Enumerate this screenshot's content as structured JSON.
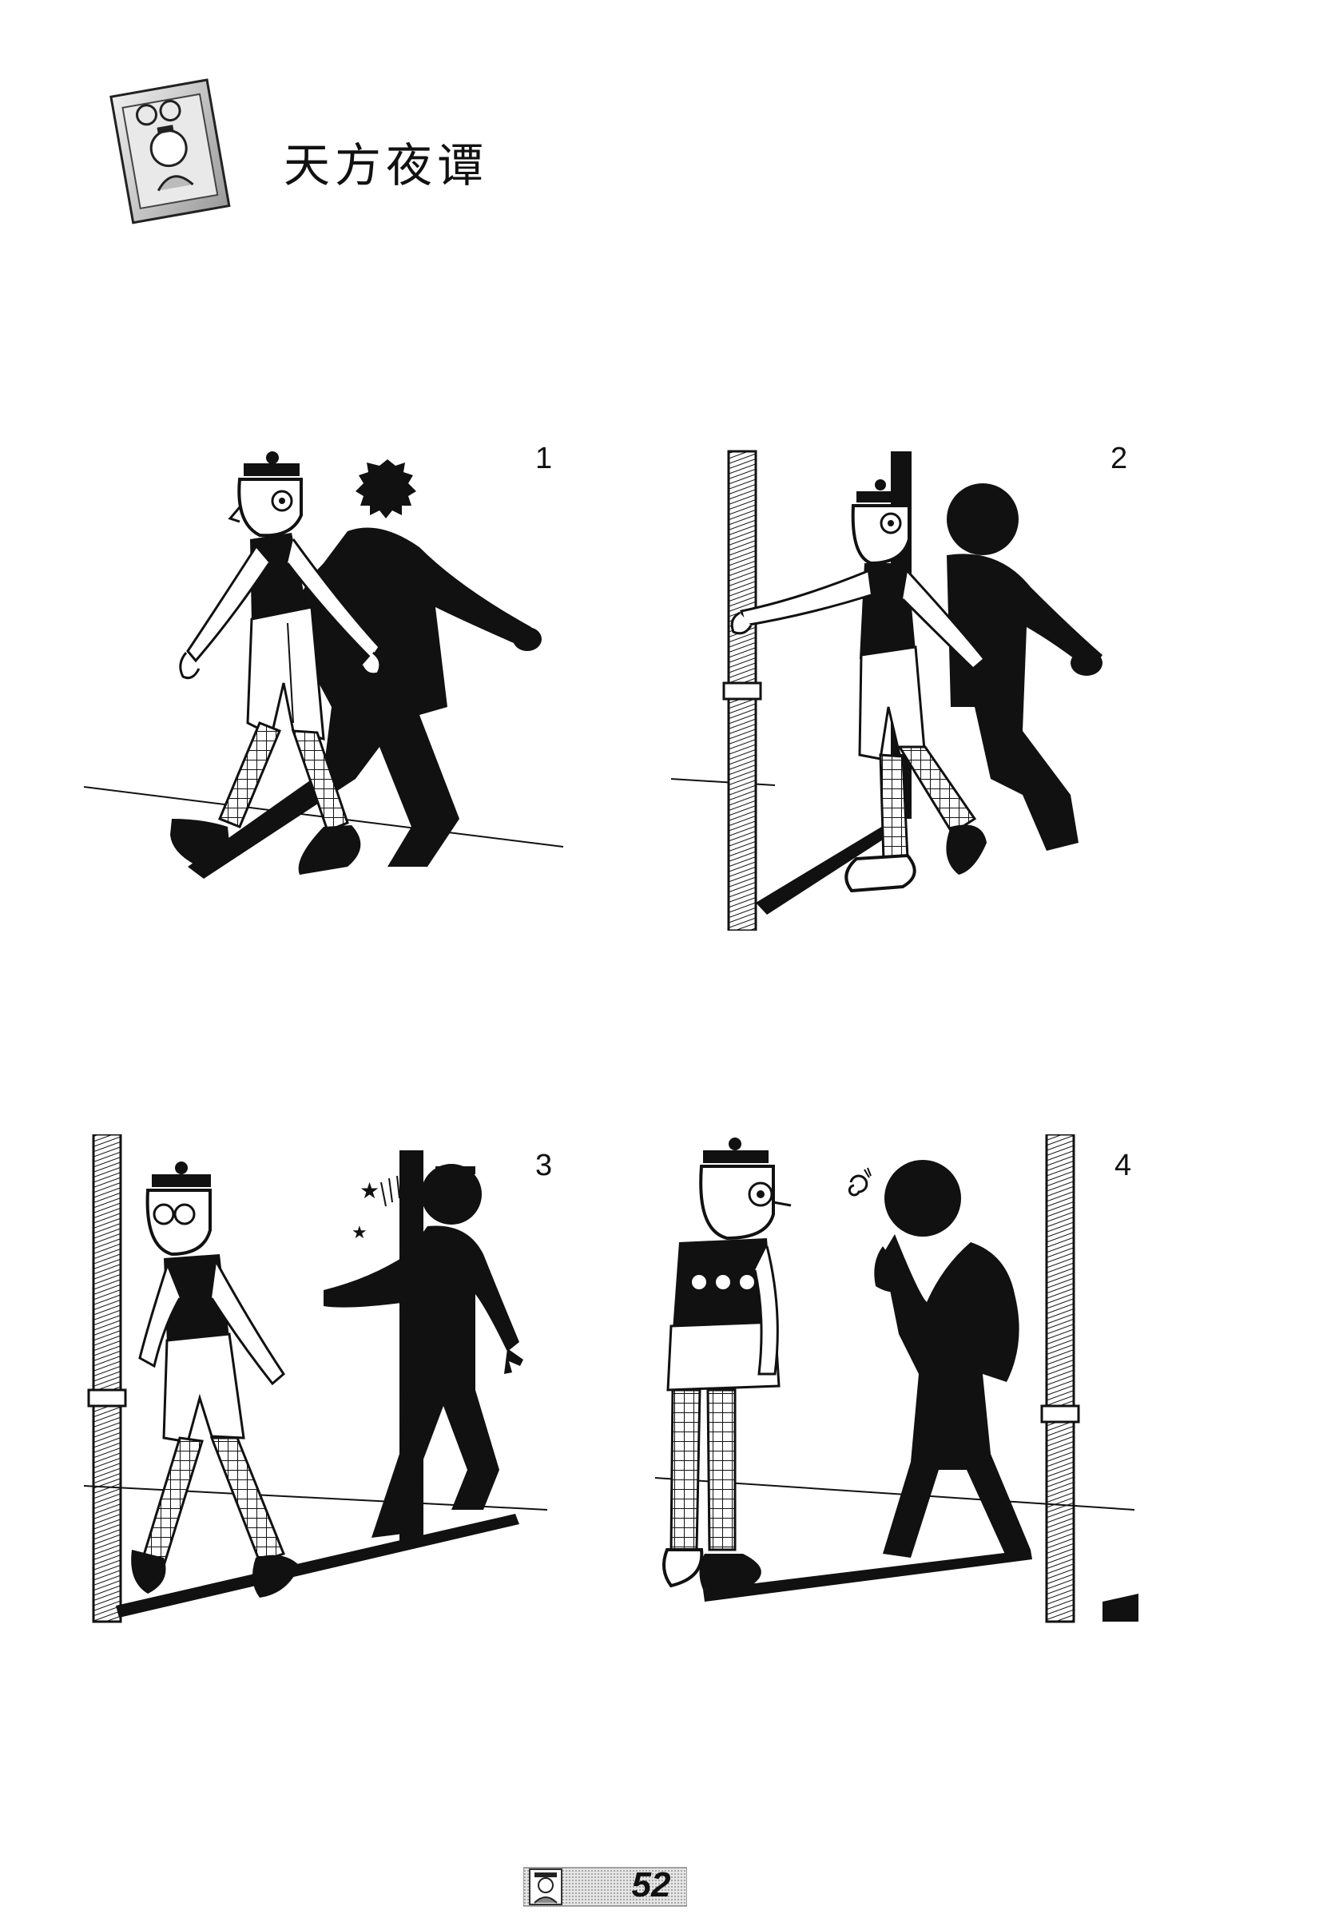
{
  "header": {
    "title": "天方夜谭",
    "icon": "comic-portrait-card-icon"
  },
  "panels": [
    {
      "number": "1",
      "scene": "walking-boy-and-shadow"
    },
    {
      "number": "2",
      "scene": "boy-passing-pillar-shadow"
    },
    {
      "number": "3",
      "scene": "shadow-bumps-pillar"
    },
    {
      "number": "4",
      "scene": "shadow-dazed-boy-watching"
    }
  ],
  "footer": {
    "page_number": "52",
    "badge_icon": "character-face-icon"
  },
  "colors": {
    "ink": "#111111",
    "paper": "#ffffff",
    "shade": "#d8d8d8"
  }
}
